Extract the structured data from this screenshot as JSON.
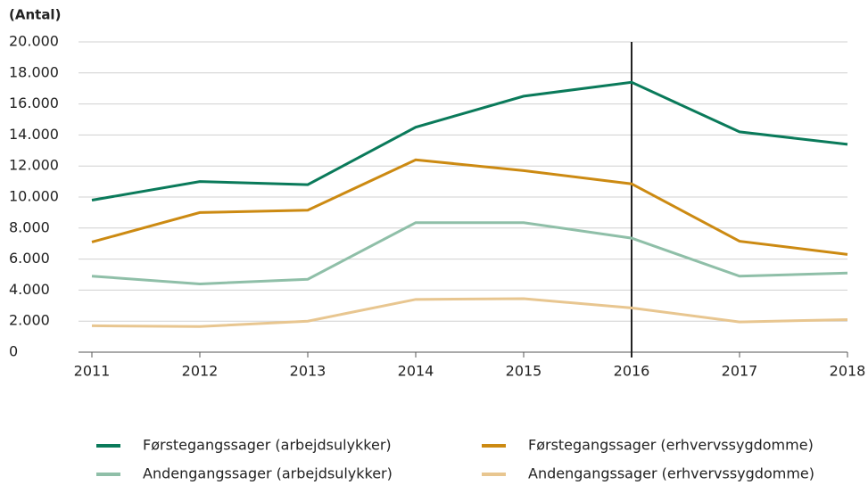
{
  "chart_data": {
    "type": "line",
    "y_axis_label": "(Antal)",
    "x": [
      2011,
      2012,
      2013,
      2014,
      2015,
      2016,
      2017,
      2018
    ],
    "xlim": [
      2011,
      2018
    ],
    "xticks": [
      2011,
      2012,
      2013,
      2014,
      2015,
      2016,
      2017,
      2018
    ],
    "ylim": [
      0,
      20000
    ],
    "yticks": [
      0,
      {
        "value": 2000,
        "label": "2.000"
      },
      {
        "value": 4000,
        "label": "4.000"
      },
      {
        "value": 6000,
        "label": "6.000"
      },
      {
        "value": 8000,
        "label": "8.000"
      },
      {
        "value": 10000,
        "label": "10.000"
      },
      {
        "value": 12000,
        "label": "12.000"
      },
      {
        "value": 14000,
        "label": "14.000"
      },
      {
        "value": 16000,
        "label": "16.000"
      },
      {
        "value": 18000,
        "label": "18.000"
      },
      {
        "value": 20000,
        "label": "20.000"
      }
    ],
    "grid": true,
    "reference_line_x": 2016,
    "series": [
      {
        "name": "Førstegangssager (arbejdsulykker)",
        "color": "#0a7a5a",
        "values": [
          9800,
          11000,
          10800,
          14500,
          16500,
          17400,
          14200,
          13400
        ]
      },
      {
        "name": "Førstegangssager (erhvervssygdomme)",
        "color": "#cc8a12",
        "values": [
          7100,
          9000,
          9150,
          12400,
          11700,
          10850,
          7150,
          6300
        ]
      },
      {
        "name": "Andengangssager (arbejdsulykker)",
        "color": "#8fbfa8",
        "values": [
          4900,
          4400,
          4700,
          8350,
          8350,
          7350,
          4900,
          5100
        ]
      },
      {
        "name": "Andengangssager (erhvervssygdomme)",
        "color": "#e8c690",
        "values": [
          1700,
          1650,
          2000,
          3400,
          3450,
          2850,
          1950,
          2100
        ]
      }
    ]
  }
}
